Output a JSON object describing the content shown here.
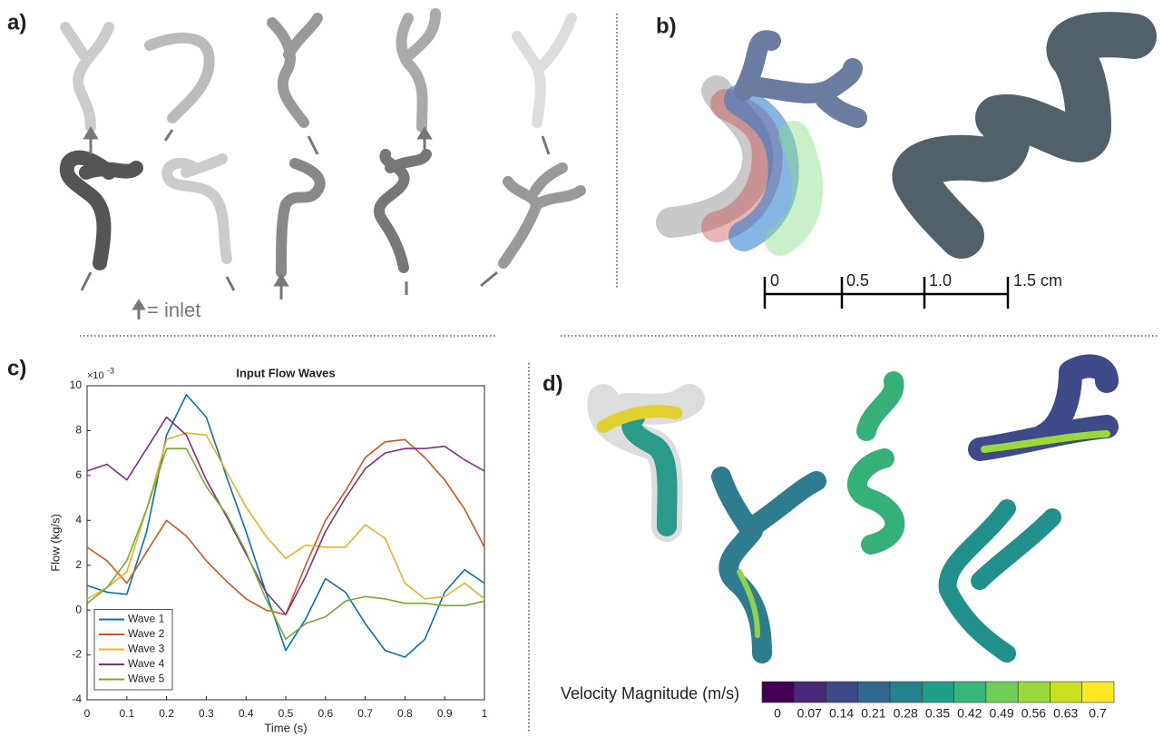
{
  "panel_labels": [
    "a)",
    "b)",
    "c)",
    "d)"
  ],
  "inlet_legend": "= inlet",
  "scale_bar": {
    "labels": [
      "0",
      "0.5",
      "1.0",
      "1.5 cm"
    ]
  },
  "chart_data": {
    "type": "line",
    "title": "Input Flow Waves",
    "x_label": "Time (s)",
    "y_label": "Flow (kg/s)",
    "y_multiplier": {
      "base": "×10",
      "exponent": "-3"
    },
    "x": [
      0,
      0.05,
      0.1,
      0.15,
      0.2,
      0.25,
      0.3,
      0.35,
      0.4,
      0.45,
      0.5,
      0.55,
      0.6,
      0.65,
      0.7,
      0.75,
      0.8,
      0.85,
      0.9,
      0.95,
      1
    ],
    "series": [
      {
        "name": "Wave 1",
        "color": "#0072BD",
        "values": [
          1.1,
          0.8,
          0.7,
          3.5,
          7.8,
          9.6,
          8.6,
          6.0,
          3.5,
          0.8,
          -1.8,
          -0.4,
          1.4,
          0.8,
          -0.6,
          -1.8,
          -2.1,
          -1.3,
          0.8,
          1.8,
          1.2
        ]
      },
      {
        "name": "Wave 2",
        "color": "#D95319",
        "values": [
          2.8,
          2.2,
          1.2,
          2.6,
          4.0,
          3.3,
          2.2,
          1.3,
          0.5,
          0.0,
          -0.2,
          2.0,
          4.0,
          5.3,
          6.8,
          7.5,
          7.6,
          6.8,
          5.8,
          4.5,
          2.8
        ]
      },
      {
        "name": "Wave 3",
        "color": "#EDB120",
        "values": [
          0.5,
          1.0,
          1.7,
          4.5,
          7.6,
          7.9,
          7.8,
          6.2,
          4.6,
          3.3,
          2.3,
          2.9,
          2.8,
          2.8,
          3.8,
          3.2,
          1.2,
          0.5,
          0.6,
          1.2,
          0.5
        ]
      },
      {
        "name": "Wave 4",
        "color": "#7E2F8E",
        "values": [
          6.2,
          6.5,
          5.8,
          7.2,
          8.6,
          7.8,
          5.8,
          4.2,
          2.5,
          0.8,
          -0.2,
          1.5,
          3.5,
          5.0,
          6.3,
          7.0,
          7.2,
          7.2,
          7.3,
          6.7,
          6.2
        ]
      },
      {
        "name": "Wave 5",
        "color": "#77AC30",
        "values": [
          0.3,
          1.0,
          2.2,
          4.5,
          7.2,
          7.2,
          5.5,
          4.3,
          2.6,
          0.5,
          -1.3,
          -0.6,
          -0.3,
          0.4,
          0.6,
          0.5,
          0.3,
          0.3,
          0.2,
          0.2,
          0.4
        ]
      }
    ],
    "xlim": [
      0,
      1
    ],
    "ylim": [
      -4,
      10
    ],
    "xticks": [
      0,
      0.1,
      0.2,
      0.3,
      0.4,
      0.5,
      0.6,
      0.7,
      0.8,
      0.9,
      1
    ],
    "yticks": [
      -4,
      -2,
      0,
      2,
      4,
      6,
      8,
      10
    ],
    "legend": "lower left"
  },
  "colorbar": {
    "label": "Velocity Magnitude (m/s)",
    "ticks": [
      0,
      0.07,
      0.14,
      0.21,
      0.28,
      0.35,
      0.42,
      0.49,
      0.56,
      0.63,
      0.7
    ],
    "colors": [
      "#440154",
      "#482878",
      "#3e4989",
      "#31688e",
      "#26828e",
      "#1f9e89",
      "#35b779",
      "#6ece58",
      "#9ad93c",
      "#c8e020",
      "#fde725"
    ]
  }
}
